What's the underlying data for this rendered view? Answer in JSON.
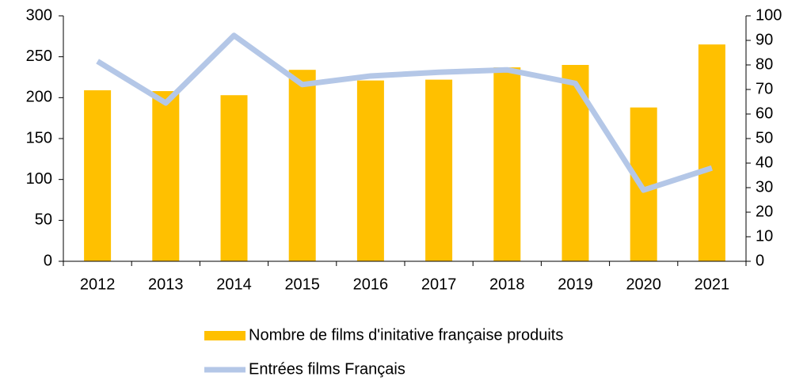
{
  "chart_data": {
    "type": "bar+line",
    "categories": [
      "2012",
      "2013",
      "2014",
      "2015",
      "2016",
      "2017",
      "2018",
      "2019",
      "2020",
      "2021"
    ],
    "series": [
      {
        "name": "Nombre de films d'initative française produits",
        "type": "bar",
        "color": "#ffc000",
        "axis": "y",
        "values": [
          209,
          208,
          203,
          234,
          221,
          222,
          237,
          240,
          188,
          265
        ]
      },
      {
        "name": "Entrées films Français",
        "type": "line",
        "color": "#b4c7e7",
        "axis": "y2",
        "values": [
          81.5,
          64.5,
          92,
          72,
          75.5,
          77,
          78,
          72.5,
          29,
          38
        ]
      }
    ],
    "ylim": [
      0,
      300
    ],
    "yticks": [
      0,
      50,
      100,
      150,
      200,
      250,
      300
    ],
    "y2lim": [
      0,
      100
    ],
    "y2ticks": [
      0,
      10,
      20,
      30,
      40,
      50,
      60,
      70,
      80,
      90,
      100
    ],
    "legend": "bottom"
  }
}
